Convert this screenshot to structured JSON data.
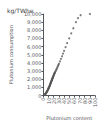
{
  "chart_data": {
    "type": "scatter",
    "title": "kg/TWhe",
    "xlabel": "Plutonium content",
    "ylabel": "Plutonium consumption",
    "xlim": [
      0,
      100
    ],
    "ylim": [
      0,
      10000
    ],
    "xticks": [
      0,
      10,
      20,
      30,
      40,
      50,
      60,
      70,
      80,
      90,
      100
    ],
    "yticks": [
      0,
      1000,
      2000,
      3000,
      4000,
      5000,
      6000,
      7000,
      8000,
      9000,
      10000
    ],
    "color": "#555555",
    "marker": "point",
    "grid": false,
    "x": [
      2,
      3,
      4,
      4.5,
      5,
      5.5,
      6,
      6.5,
      7,
      7.5,
      8,
      8.5,
      9,
      9.5,
      10,
      10,
      10.5,
      11,
      11.5,
      12,
      12,
      12.5,
      13,
      13,
      13.5,
      14,
      14,
      14.5,
      15,
      15,
      15.5,
      16,
      16,
      16.5,
      17,
      17,
      17.5,
      18,
      18,
      18.5,
      19,
      19.5,
      20,
      20,
      21,
      21,
      22,
      22,
      23,
      24,
      25,
      26,
      27,
      28,
      29,
      30,
      32,
      34,
      36,
      38,
      40,
      43,
      46,
      50,
      54,
      58,
      63,
      67,
      72,
      90
    ],
    "values": [
      120,
      160,
      200,
      240,
      300,
      340,
      390,
      450,
      500,
      560,
      620,
      680,
      740,
      810,
      880,
      920,
      950,
      1020,
      1080,
      1150,
      1200,
      1260,
      1330,
      1380,
      1420,
      1500,
      1540,
      1580,
      1650,
      1700,
      1750,
      1820,
      1860,
      1920,
      1990,
      2020,
      2080,
      2150,
      2200,
      2260,
      2330,
      2400,
      2480,
      2520,
      2620,
      2660,
      2770,
      2810,
      2920,
      3040,
      3170,
      3310,
      3450,
      3600,
      3750,
      3900,
      4200,
      4500,
      4820,
      5150,
      5480,
      5950,
      6430,
      7020,
      7630,
      8250,
      9000,
      9500,
      9850,
      10000
    ]
  }
}
